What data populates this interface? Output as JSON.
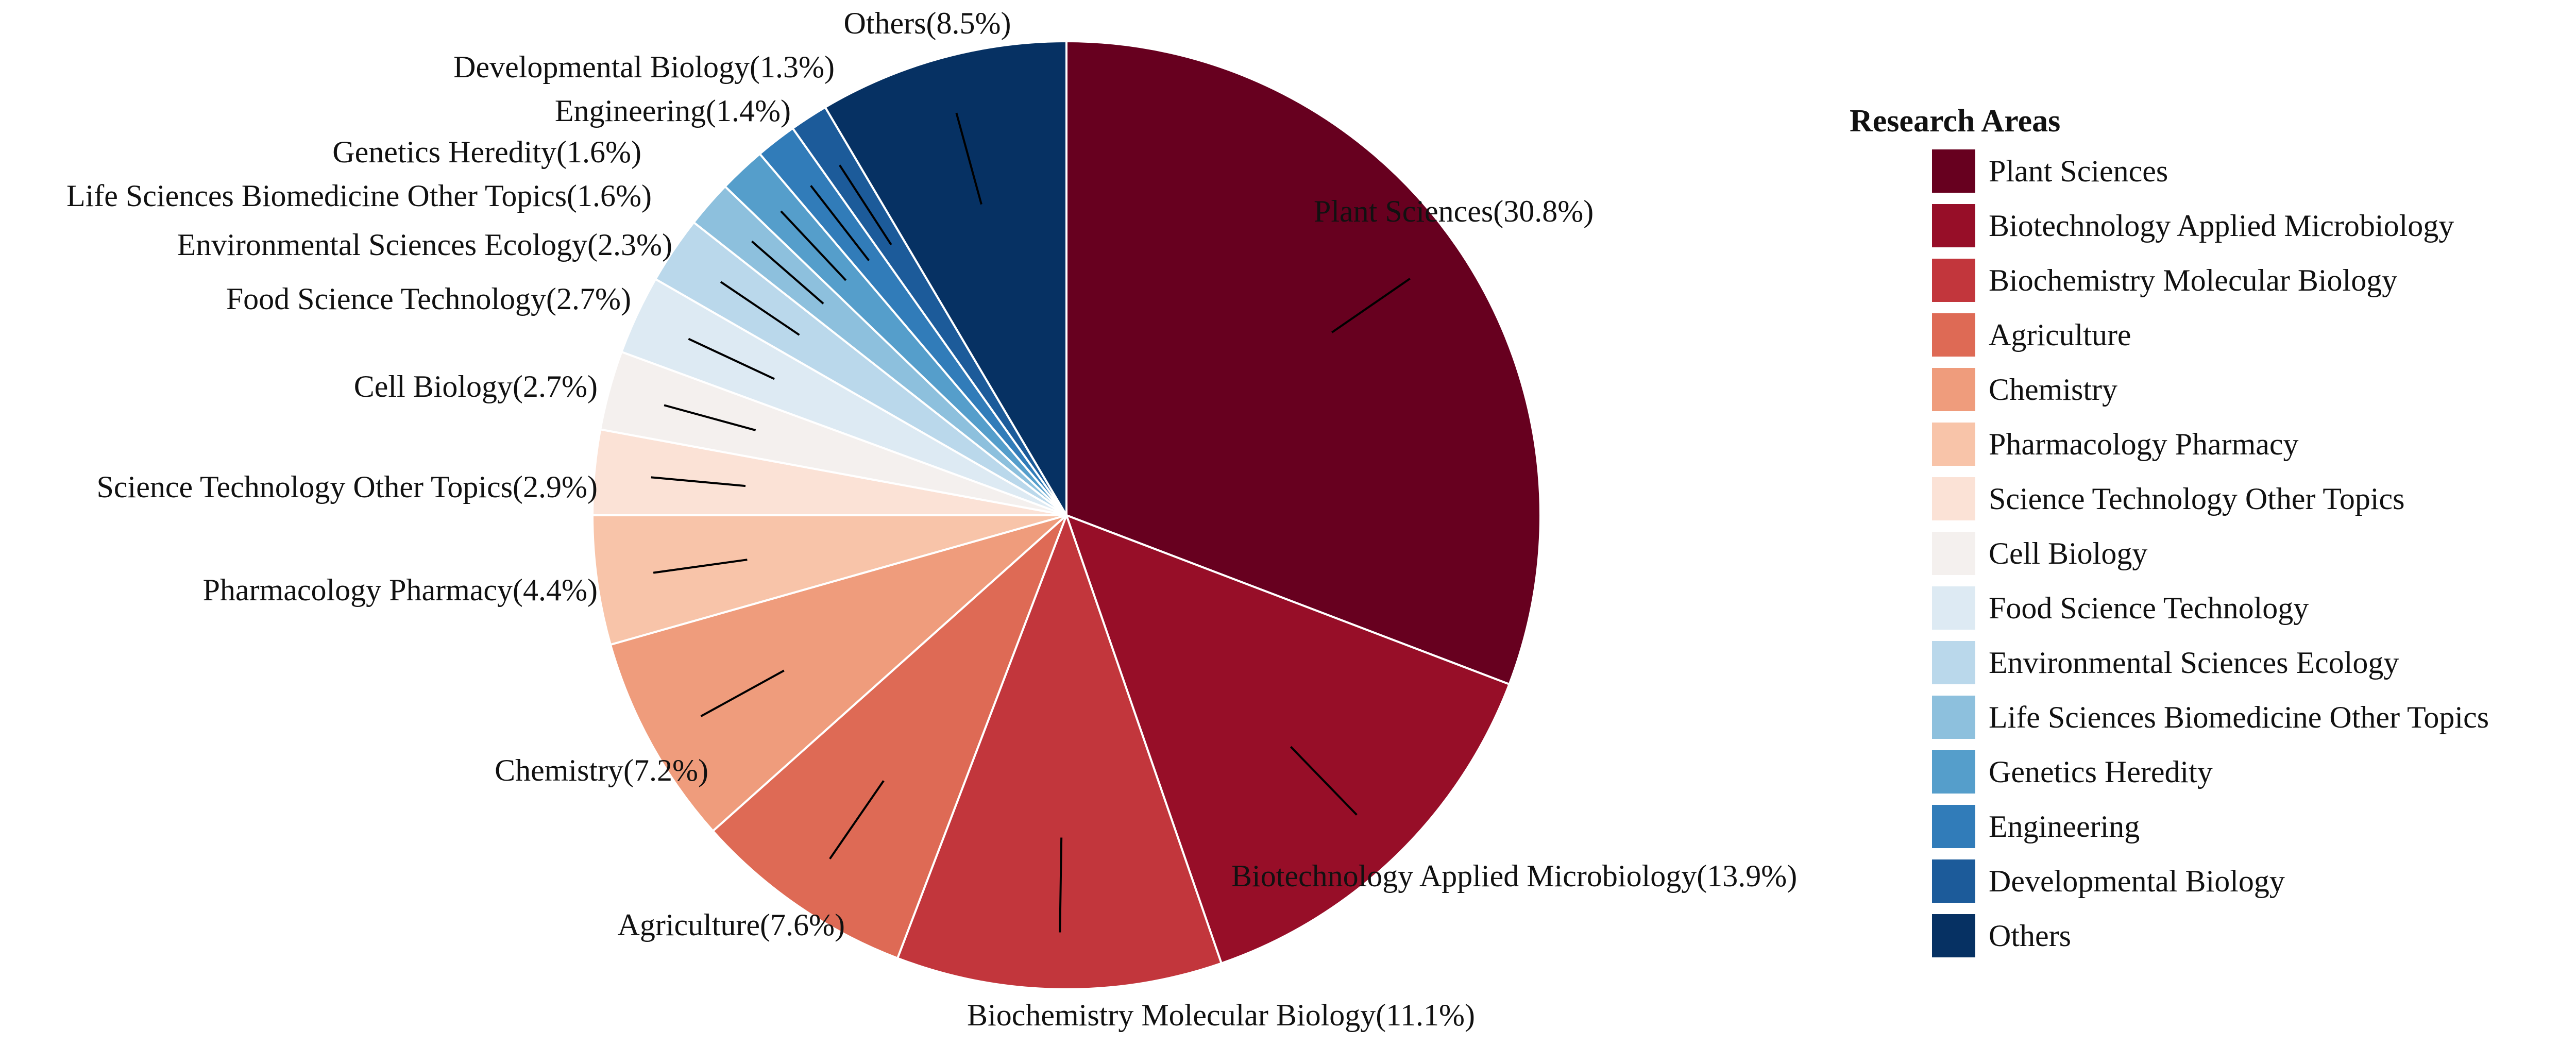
{
  "chart_data": {
    "type": "pie",
    "legend_title": "Research Areas",
    "legend_position": "right",
    "slices": [
      {
        "name": "Plant Sciences",
        "value": 30.8,
        "label": "Plant Sciences(30.8%)",
        "color": "#67001F"
      },
      {
        "name": "Biotechnology Applied Microbiology",
        "value": 13.9,
        "label": "Biotechnology Applied Microbiology(13.9%)",
        "color": "#970E28"
      },
      {
        "name": "Biochemistry Molecular Biology",
        "value": 11.1,
        "label": "Biochemistry Molecular Biology(11.1%)",
        "color": "#C2363C"
      },
      {
        "name": "Agriculture",
        "value": 7.6,
        "label": "Agriculture(7.6%)",
        "color": "#DE6A55"
      },
      {
        "name": "Chemistry",
        "value": 7.2,
        "label": "Chemistry(7.2%)",
        "color": "#EF9C7C"
      },
      {
        "name": "Pharmacology Pharmacy",
        "value": 4.4,
        "label": "Pharmacology Pharmacy(4.4%)",
        "color": "#F8C4A9"
      },
      {
        "name": "Science Technology Other Topics",
        "value": 2.9,
        "label": "Science Technology Other Topics(2.9%)",
        "color": "#FBE2D6"
      },
      {
        "name": "Cell Biology",
        "value": 2.7,
        "label": "Cell Biology(2.7%)",
        "color": "#F4F0EE"
      },
      {
        "name": "Food Science Technology",
        "value": 2.7,
        "label": "Food Science Technology(2.7%)",
        "color": "#DDEAF3"
      },
      {
        "name": "Environmental Sciences Ecology",
        "value": 2.3,
        "label": "Environmental Sciences Ecology(2.3%)",
        "color": "#BAD8EB"
      },
      {
        "name": "Life Sciences Biomedicine Other Topics",
        "value": 1.6,
        "label": "Life Sciences Biomedicine Other Topics(1.6%)",
        "color": "#8DC0DD"
      },
      {
        "name": "Genetics Heredity",
        "value": 1.6,
        "label": "Genetics Heredity(1.6%)",
        "color": "#559ECB"
      },
      {
        "name": "Engineering",
        "value": 1.4,
        "label": "Engineering(1.4%)",
        "color": "#317CB9"
      },
      {
        "name": "Developmental Biology",
        "value": 1.3,
        "label": "Developmental Biology(1.3%)",
        "color": "#1C5B9A"
      },
      {
        "name": "Others",
        "value": 8.5,
        "label": "Others(8.5%)",
        "color": "#063163"
      }
    ]
  }
}
